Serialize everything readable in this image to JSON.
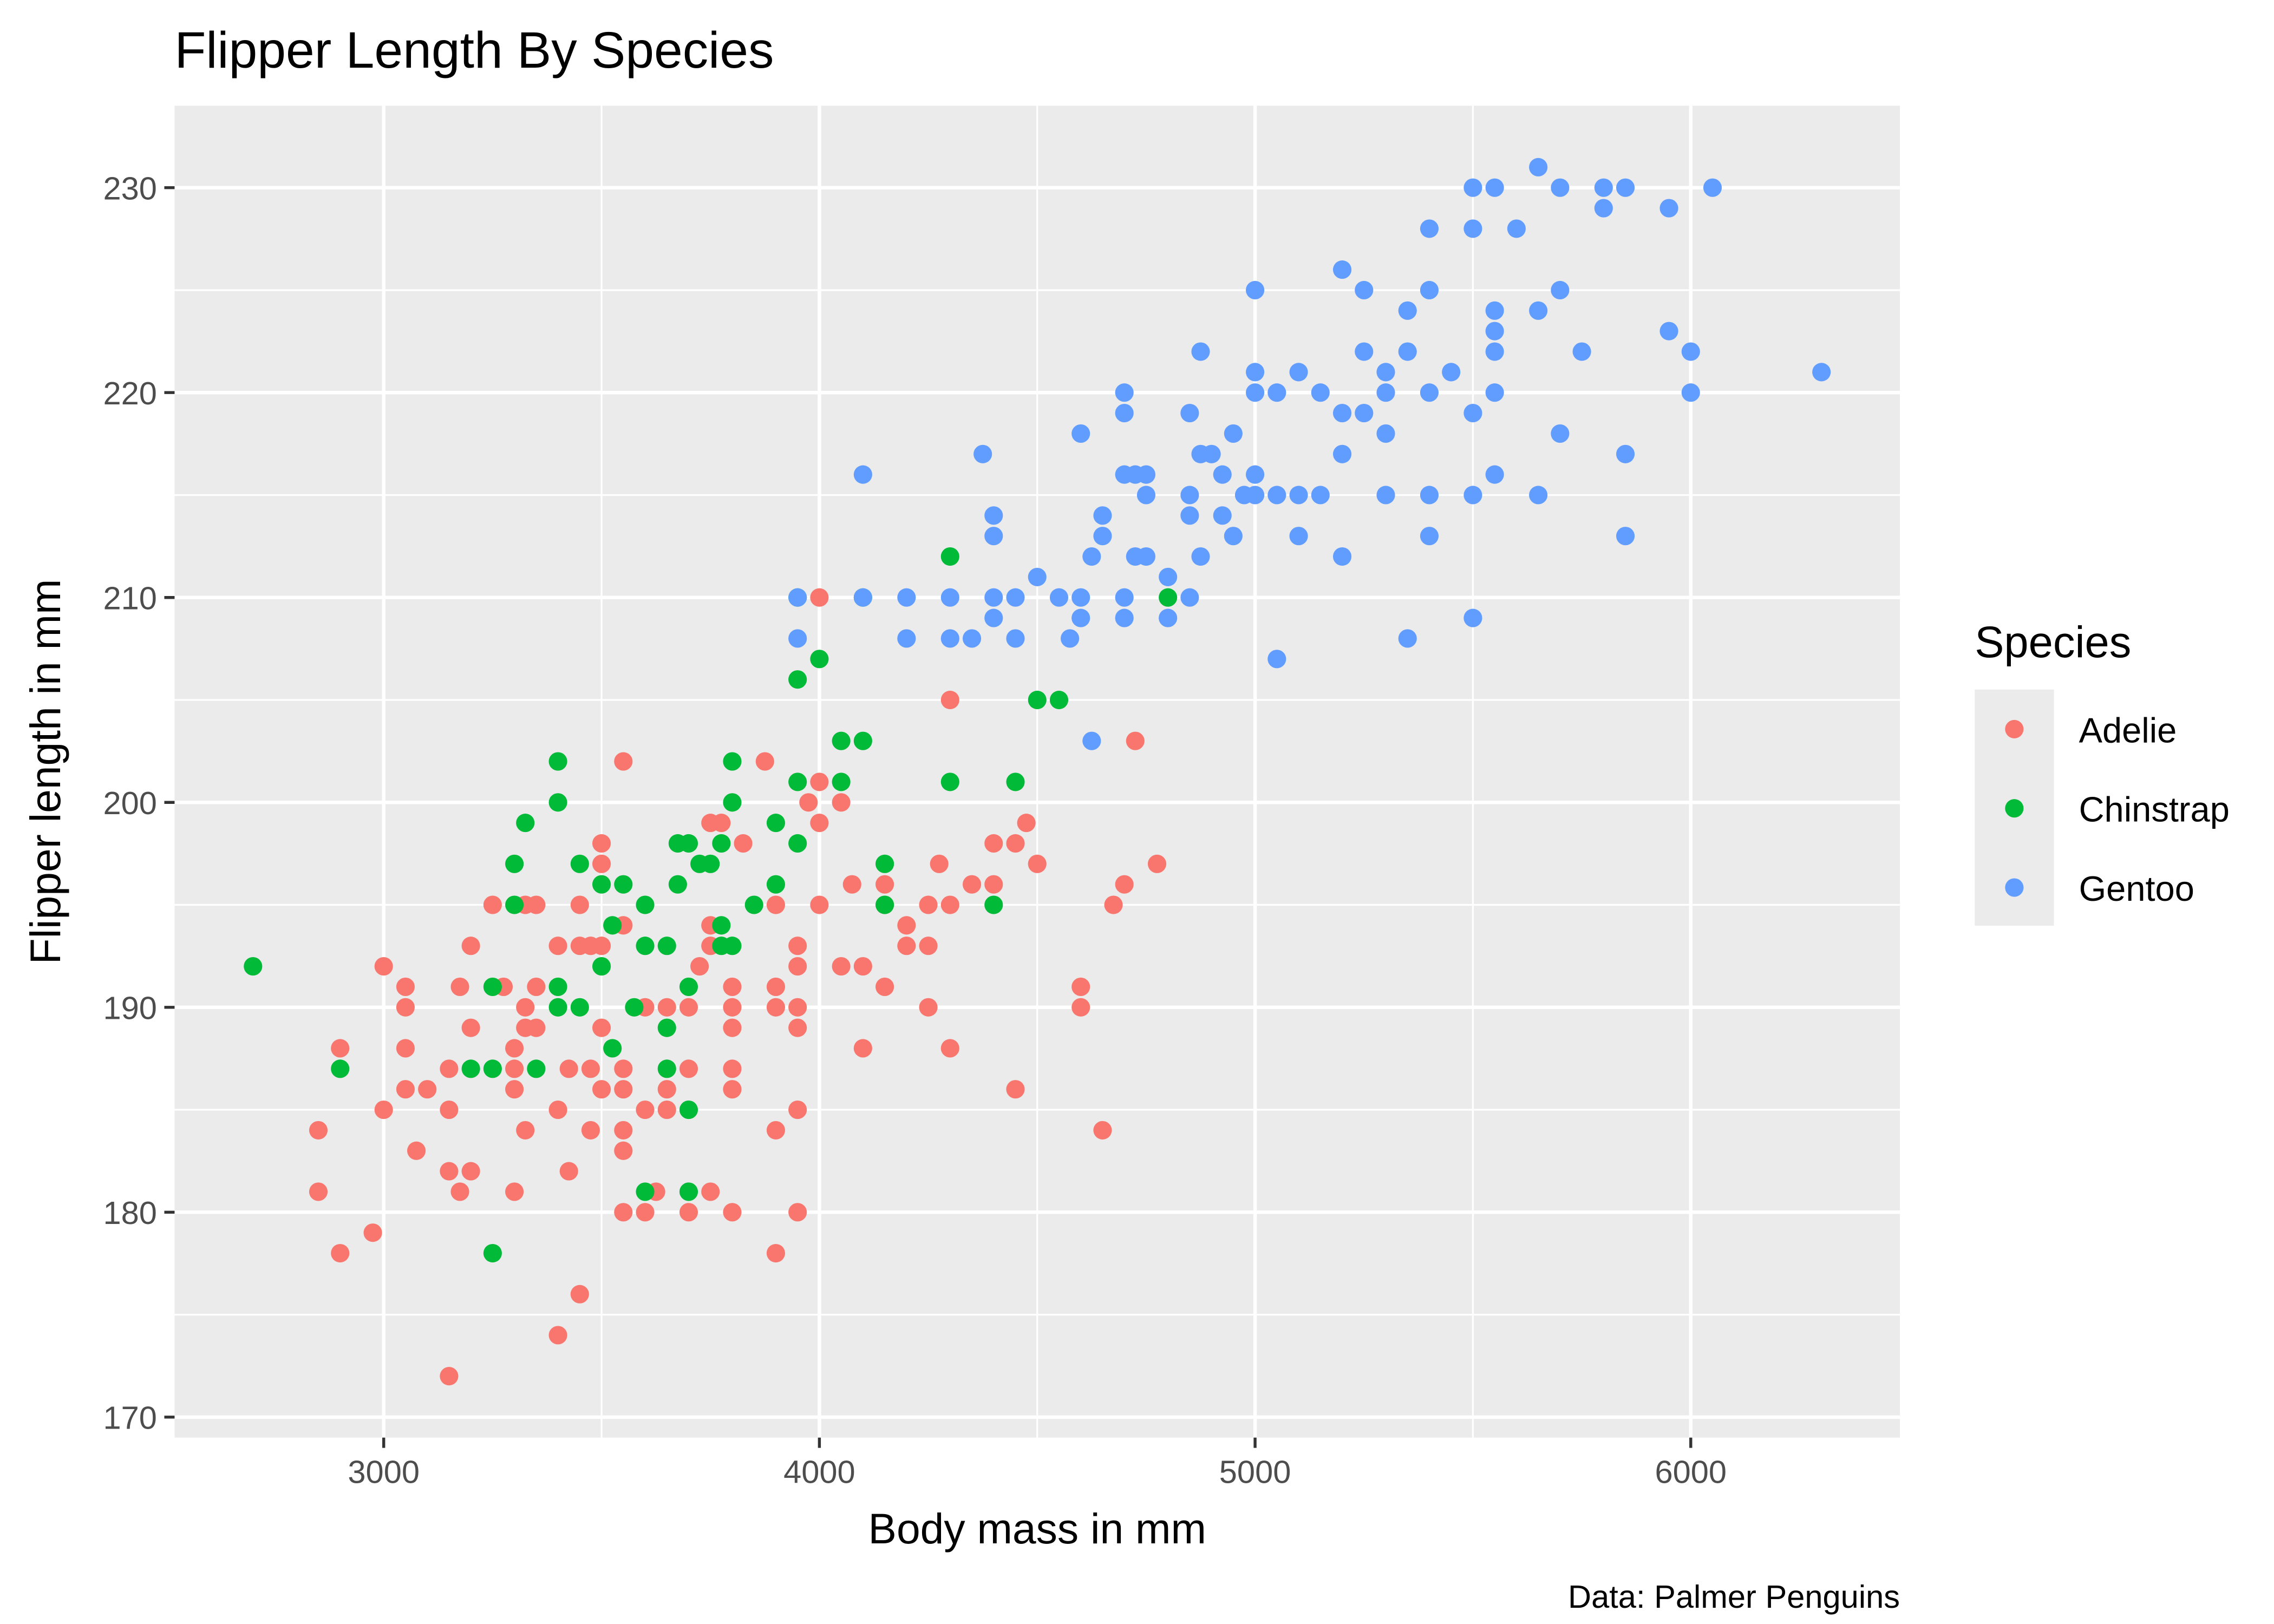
{
  "chart_data": {
    "type": "scatter",
    "title": "Flipper Length By Species",
    "xlabel": "Body mass in mm",
    "ylabel": "Flipper length in mm",
    "caption": "Data: Palmer Penguins",
    "xlim": [
      2520,
      6480
    ],
    "ylim": [
      169,
      234
    ],
    "xticks": [
      3000,
      4000,
      5000,
      6000
    ],
    "xtick_labels": [
      "3000",
      "4000",
      "5000",
      "6000"
    ],
    "yticks": [
      170,
      180,
      190,
      200,
      210,
      220,
      230
    ],
    "ytick_labels": [
      "170",
      "180",
      "190",
      "200",
      "210",
      "220",
      "230"
    ],
    "grid": true,
    "panel_background": "#EBEBEB",
    "legend": {
      "title": "Species",
      "position": "right"
    },
    "series": [
      {
        "name": "Adelie",
        "color": "#F8766D",
        "points": [
          [
            4000,
            210
          ],
          [
            4300,
            205
          ],
          [
            4725,
            203
          ],
          [
            3550,
            202
          ],
          [
            3875,
            202
          ],
          [
            4000,
            201
          ],
          [
            3975,
            200
          ],
          [
            4050,
            200
          ],
          [
            3750,
            199
          ],
          [
            3775,
            199
          ],
          [
            4000,
            199
          ],
          [
            4475,
            199
          ],
          [
            3500,
            198
          ],
          [
            3825,
            198
          ],
          [
            4400,
            198
          ],
          [
            4450,
            198
          ],
          [
            3500,
            197
          ],
          [
            4275,
            197
          ],
          [
            4500,
            197
          ],
          [
            4775,
            197
          ],
          [
            4075,
            196
          ],
          [
            4150,
            196
          ],
          [
            4350,
            196
          ],
          [
            4400,
            196
          ],
          [
            4700,
            196
          ],
          [
            3250,
            195
          ],
          [
            3325,
            195
          ],
          [
            3350,
            195
          ],
          [
            3450,
            195
          ],
          [
            3900,
            195
          ],
          [
            4000,
            195
          ],
          [
            4150,
            195
          ],
          [
            4250,
            195
          ],
          [
            4300,
            195
          ],
          [
            4675,
            195
          ],
          [
            3550,
            194
          ],
          [
            3750,
            194
          ],
          [
            4200,
            194
          ],
          [
            3200,
            193
          ],
          [
            3400,
            193
          ],
          [
            3450,
            193
          ],
          [
            3475,
            193
          ],
          [
            3500,
            193
          ],
          [
            3750,
            193
          ],
          [
            3950,
            193
          ],
          [
            4200,
            193
          ],
          [
            4250,
            193
          ],
          [
            3000,
            192
          ],
          [
            3725,
            192
          ],
          [
            3950,
            192
          ],
          [
            4050,
            192
          ],
          [
            4100,
            192
          ],
          [
            3050,
            191
          ],
          [
            3175,
            191
          ],
          [
            3275,
            191
          ],
          [
            3350,
            191
          ],
          [
            3800,
            191
          ],
          [
            3900,
            191
          ],
          [
            4150,
            191
          ],
          [
            4600,
            191
          ],
          [
            3050,
            190
          ],
          [
            3325,
            190
          ],
          [
            3600,
            190
          ],
          [
            3650,
            190
          ],
          [
            3700,
            190
          ],
          [
            3800,
            190
          ],
          [
            3900,
            190
          ],
          [
            3950,
            190
          ],
          [
            4250,
            190
          ],
          [
            4600,
            190
          ],
          [
            3200,
            189
          ],
          [
            3325,
            189
          ],
          [
            3350,
            189
          ],
          [
            3500,
            189
          ],
          [
            3800,
            189
          ],
          [
            3950,
            189
          ],
          [
            2900,
            188
          ],
          [
            3050,
            188
          ],
          [
            3300,
            188
          ],
          [
            4100,
            188
          ],
          [
            4300,
            188
          ],
          [
            3150,
            187
          ],
          [
            3300,
            187
          ],
          [
            3425,
            187
          ],
          [
            3475,
            187
          ],
          [
            3550,
            187
          ],
          [
            3700,
            187
          ],
          [
            3800,
            187
          ],
          [
            3050,
            186
          ],
          [
            3100,
            186
          ],
          [
            3300,
            186
          ],
          [
            3500,
            186
          ],
          [
            3550,
            186
          ],
          [
            3650,
            186
          ],
          [
            3800,
            186
          ],
          [
            4450,
            186
          ],
          [
            3000,
            185
          ],
          [
            3150,
            185
          ],
          [
            3400,
            185
          ],
          [
            3600,
            185
          ],
          [
            3650,
            185
          ],
          [
            3950,
            185
          ],
          [
            2850,
            184
          ],
          [
            3325,
            184
          ],
          [
            3475,
            184
          ],
          [
            3550,
            184
          ],
          [
            3900,
            184
          ],
          [
            4650,
            184
          ],
          [
            3075,
            183
          ],
          [
            3550,
            183
          ],
          [
            3150,
            182
          ],
          [
            3200,
            182
          ],
          [
            3425,
            182
          ],
          [
            2850,
            181
          ],
          [
            3175,
            181
          ],
          [
            3300,
            181
          ],
          [
            3625,
            181
          ],
          [
            3750,
            181
          ],
          [
            3550,
            180
          ],
          [
            3600,
            180
          ],
          [
            3700,
            180
          ],
          [
            3800,
            180
          ],
          [
            3950,
            180
          ],
          [
            2975,
            179
          ],
          [
            2900,
            178
          ],
          [
            3900,
            178
          ],
          [
            3450,
            176
          ],
          [
            3400,
            174
          ],
          [
            3150,
            172
          ]
        ]
      },
      {
        "name": "Chinstrap",
        "color": "#00BA38",
        "points": [
          [
            4300,
            212
          ],
          [
            3950,
            210
          ],
          [
            4100,
            210
          ],
          [
            4800,
            210
          ],
          [
            4000,
            207
          ],
          [
            3950,
            206
          ],
          [
            4500,
            205
          ],
          [
            4550,
            205
          ],
          [
            4050,
            203
          ],
          [
            4100,
            203
          ],
          [
            3400,
            202
          ],
          [
            3800,
            202
          ],
          [
            3950,
            201
          ],
          [
            4050,
            201
          ],
          [
            4300,
            201
          ],
          [
            4450,
            201
          ],
          [
            3400,
            200
          ],
          [
            3800,
            200
          ],
          [
            3325,
            199
          ],
          [
            3900,
            199
          ],
          [
            3675,
            198
          ],
          [
            3700,
            198
          ],
          [
            3775,
            198
          ],
          [
            3950,
            198
          ],
          [
            3300,
            197
          ],
          [
            3450,
            197
          ],
          [
            3725,
            197
          ],
          [
            3750,
            197
          ],
          [
            4150,
            197
          ],
          [
            3500,
            196
          ],
          [
            3550,
            196
          ],
          [
            3675,
            196
          ],
          [
            3900,
            196
          ],
          [
            3300,
            195
          ],
          [
            3600,
            195
          ],
          [
            3850,
            195
          ],
          [
            4150,
            195
          ],
          [
            4400,
            195
          ],
          [
            3525,
            194
          ],
          [
            3775,
            194
          ],
          [
            3600,
            193
          ],
          [
            3650,
            193
          ],
          [
            3775,
            193
          ],
          [
            3800,
            193
          ],
          [
            2700,
            192
          ],
          [
            3500,
            192
          ],
          [
            3250,
            191
          ],
          [
            3400,
            191
          ],
          [
            3700,
            191
          ],
          [
            3400,
            190
          ],
          [
            3450,
            190
          ],
          [
            3575,
            190
          ],
          [
            3650,
            189
          ],
          [
            3525,
            188
          ],
          [
            2900,
            187
          ],
          [
            3200,
            187
          ],
          [
            3250,
            187
          ],
          [
            3350,
            187
          ],
          [
            3650,
            187
          ],
          [
            3700,
            185
          ],
          [
            3600,
            181
          ],
          [
            3700,
            181
          ],
          [
            3250,
            178
          ]
        ]
      },
      {
        "name": "Gentoo",
        "color": "#619CFF",
        "points": [
          [
            5650,
            231
          ],
          [
            5500,
            230
          ],
          [
            5550,
            230
          ],
          [
            5700,
            230
          ],
          [
            5800,
            230
          ],
          [
            5850,
            230
          ],
          [
            6050,
            230
          ],
          [
            5800,
            229
          ],
          [
            5950,
            229
          ],
          [
            5400,
            228
          ],
          [
            5500,
            228
          ],
          [
            5600,
            228
          ],
          [
            5200,
            226
          ],
          [
            5000,
            225
          ],
          [
            5250,
            225
          ],
          [
            5400,
            225
          ],
          [
            5700,
            225
          ],
          [
            5350,
            224
          ],
          [
            5550,
            224
          ],
          [
            5650,
            224
          ],
          [
            5550,
            223
          ],
          [
            5950,
            223
          ],
          [
            4875,
            222
          ],
          [
            5250,
            222
          ],
          [
            5350,
            222
          ],
          [
            5550,
            222
          ],
          [
            5750,
            222
          ],
          [
            6000,
            222
          ],
          [
            5000,
            221
          ],
          [
            5100,
            221
          ],
          [
            5300,
            221
          ],
          [
            5450,
            221
          ],
          [
            6300,
            221
          ],
          [
            4700,
            220
          ],
          [
            5000,
            220
          ],
          [
            5050,
            220
          ],
          [
            5150,
            220
          ],
          [
            5300,
            220
          ],
          [
            5400,
            220
          ],
          [
            5550,
            220
          ],
          [
            6000,
            220
          ],
          [
            4700,
            219
          ],
          [
            4850,
            219
          ],
          [
            5200,
            219
          ],
          [
            5250,
            219
          ],
          [
            5500,
            219
          ],
          [
            4600,
            218
          ],
          [
            4950,
            218
          ],
          [
            5300,
            218
          ],
          [
            5700,
            218
          ],
          [
            4375,
            217
          ],
          [
            4875,
            217
          ],
          [
            4900,
            217
          ],
          [
            5200,
            217
          ],
          [
            5850,
            217
          ],
          [
            4100,
            216
          ],
          [
            4700,
            216
          ],
          [
            4725,
            216
          ],
          [
            4750,
            216
          ],
          [
            4925,
            216
          ],
          [
            5000,
            216
          ],
          [
            5550,
            216
          ],
          [
            4750,
            215
          ],
          [
            4850,
            215
          ],
          [
            4975,
            215
          ],
          [
            5000,
            215
          ],
          [
            5050,
            215
          ],
          [
            5100,
            215
          ],
          [
            5150,
            215
          ],
          [
            5300,
            215
          ],
          [
            5400,
            215
          ],
          [
            5500,
            215
          ],
          [
            5650,
            215
          ],
          [
            4400,
            214
          ],
          [
            4650,
            214
          ],
          [
            4850,
            214
          ],
          [
            4925,
            214
          ],
          [
            4400,
            213
          ],
          [
            4650,
            213
          ],
          [
            4950,
            213
          ],
          [
            5100,
            213
          ],
          [
            5400,
            213
          ],
          [
            5850,
            213
          ],
          [
            4625,
            212
          ],
          [
            4725,
            212
          ],
          [
            4750,
            212
          ],
          [
            4875,
            212
          ],
          [
            5200,
            212
          ],
          [
            4500,
            211
          ],
          [
            4800,
            211
          ],
          [
            3950,
            210
          ],
          [
            4100,
            210
          ],
          [
            4200,
            210
          ],
          [
            4300,
            210
          ],
          [
            4400,
            210
          ],
          [
            4450,
            210
          ],
          [
            4550,
            210
          ],
          [
            4600,
            210
          ],
          [
            4700,
            210
          ],
          [
            4850,
            210
          ],
          [
            4400,
            209
          ],
          [
            4600,
            209
          ],
          [
            4700,
            209
          ],
          [
            4800,
            209
          ],
          [
            5500,
            209
          ],
          [
            3950,
            208
          ],
          [
            4200,
            208
          ],
          [
            4300,
            208
          ],
          [
            4350,
            208
          ],
          [
            4450,
            208
          ],
          [
            4575,
            208
          ],
          [
            5350,
            208
          ],
          [
            5050,
            207
          ],
          [
            4625,
            203
          ]
        ]
      }
    ]
  }
}
